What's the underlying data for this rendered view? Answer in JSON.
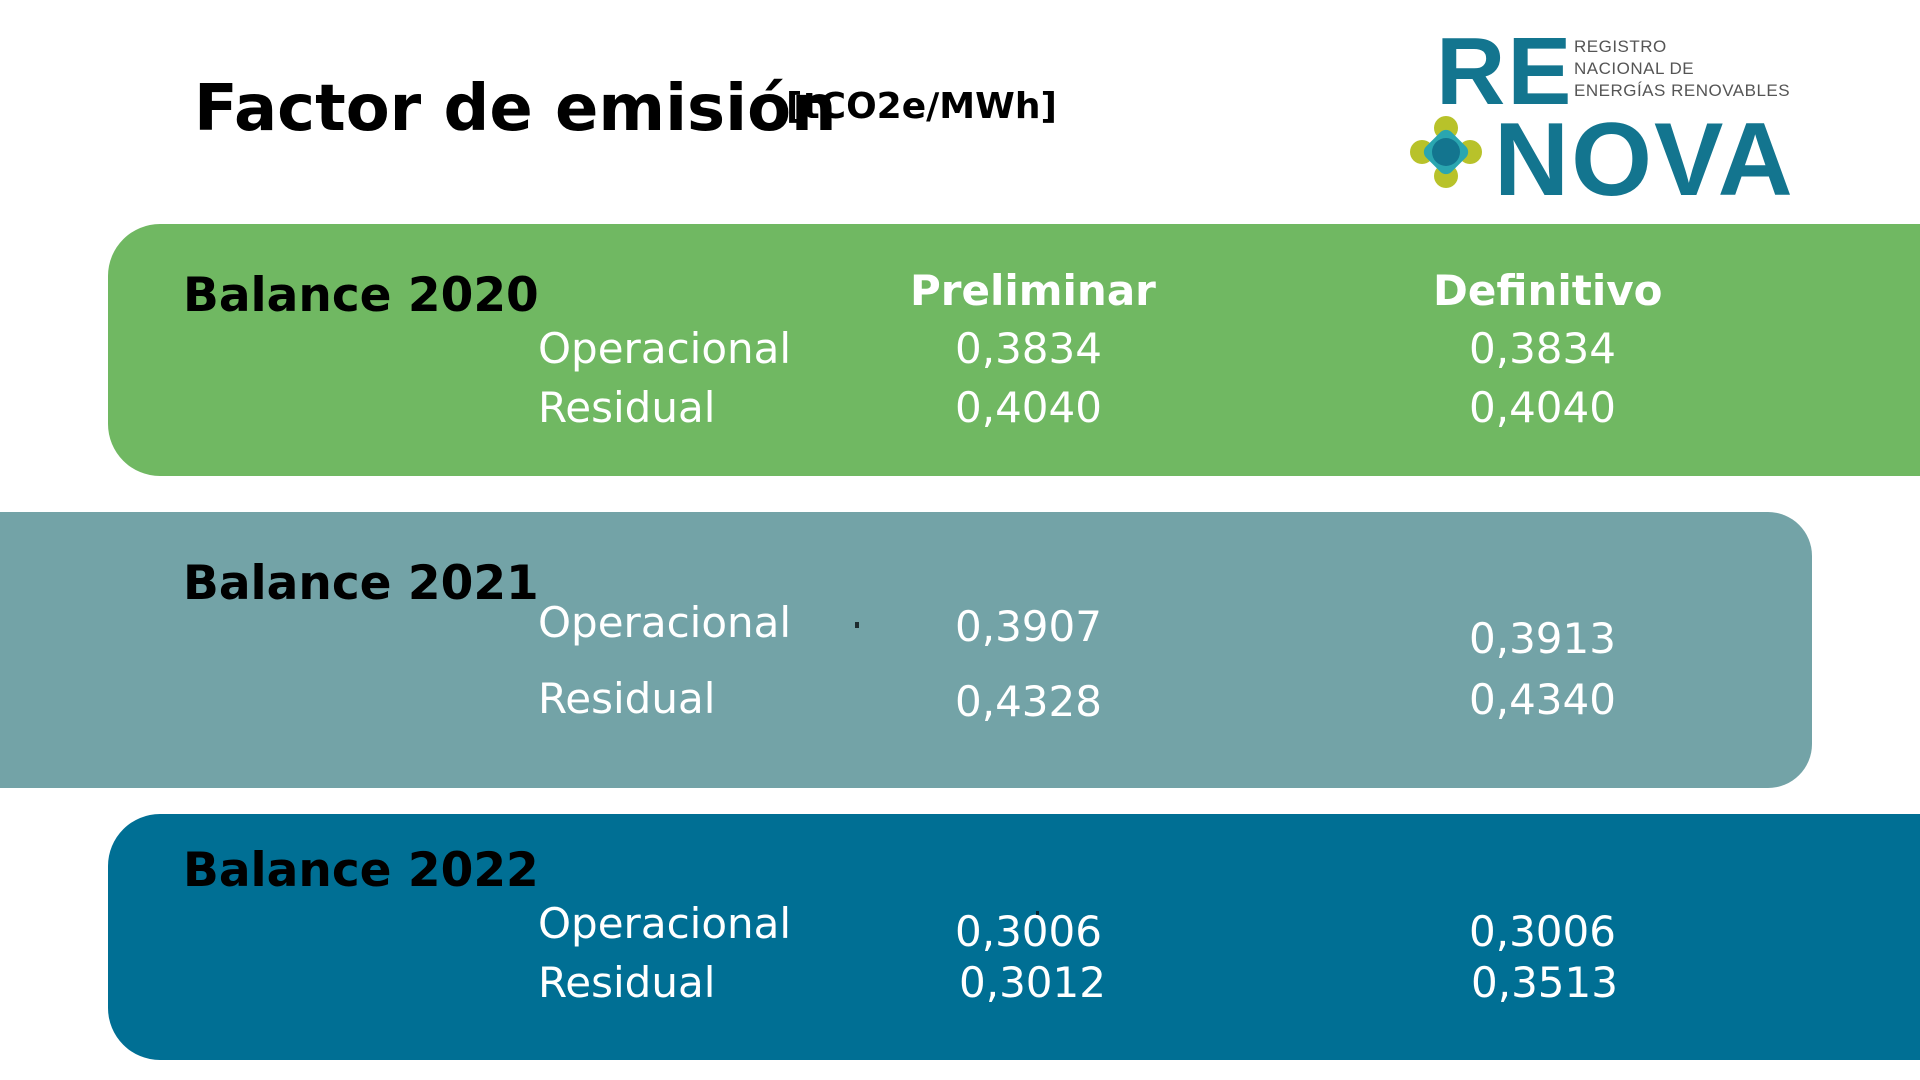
{
  "header": {
    "title": "Factor de emisión",
    "unit": "[tCO2e/MWh]"
  },
  "logo": {
    "text_re": "RE",
    "text_nova": "NOVA",
    "subtitle": [
      "REGISTRO",
      "NACIONAL DE",
      "ENERGÍAS RENOVABLES"
    ],
    "colors": {
      "primary": "#13758f",
      "accent_yellow": "#b8c22a",
      "accent_teal": "#2aa6b0"
    }
  },
  "columns": {
    "preliminar": "Preliminar",
    "definitivo": "Definitivo"
  },
  "balances": [
    {
      "title": "Balance 2020",
      "color": "#70b862",
      "rows": [
        {
          "label": "Operacional",
          "preliminar": "0,3834",
          "definitivo": "0,3834"
        },
        {
          "label": "Residual",
          "preliminar": "0,4040",
          "definitivo": "0,4040"
        }
      ]
    },
    {
      "title": "Balance 2021",
      "color": "#73a3a7",
      "rows": [
        {
          "label": "Operacional",
          "preliminar": "0,3907",
          "definitivo": "0,3913"
        },
        {
          "label": "Residual",
          "preliminar": "0,4328",
          "definitivo": "0,4340"
        }
      ]
    },
    {
      "title": "Balance 2022",
      "color": "#006f94",
      "rows": [
        {
          "label": "Operacional",
          "preliminar": "0,3006",
          "definitivo": "0,3006"
        },
        {
          "label": "Residual",
          "preliminar": "0,3012",
          "definitivo": "0,3513"
        }
      ]
    }
  ]
}
